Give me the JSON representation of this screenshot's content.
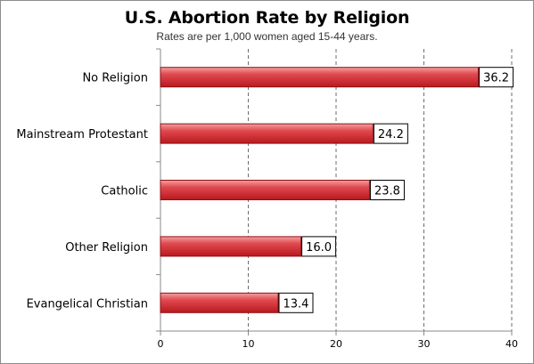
{
  "chart_data": {
    "type": "bar",
    "orientation": "horizontal",
    "title": "U.S. Abortion Rate by Religion",
    "subtitle": "Rates are per 1,000 women aged 15-44 years.",
    "xlabel": "",
    "ylabel": "",
    "categories": [
      "No Religion",
      "Mainstream Protestant",
      "Catholic",
      "Other Religion",
      "Evangelical Christian"
    ],
    "values": [
      36.2,
      24.2,
      23.8,
      16.0,
      13.4
    ],
    "value_labels": [
      "36.2",
      "24.2",
      "23.8",
      "16.0",
      "13.4"
    ],
    "xlim": [
      0,
      40
    ],
    "xticks": [
      0,
      10,
      20,
      30,
      40
    ],
    "xtick_labels": [
      "0",
      "10",
      "20",
      "30",
      "40"
    ],
    "grid": "vertical dashed",
    "legend": "none",
    "bar_color": "#d93a3f"
  }
}
